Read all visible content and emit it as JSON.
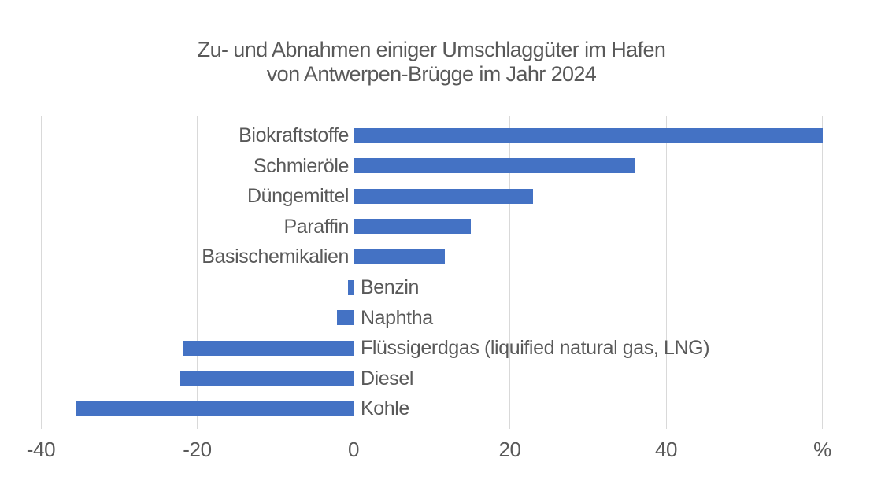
{
  "chart_data": {
    "type": "bar",
    "orientation": "horizontal",
    "title": "Zu- und Abnahmen einiger Umschlaggüter im Hafen von Antwerpen-Brügge im Jahr 2024",
    "title_lines": {
      "line1": "Zu- und Abnahmen einiger Umschlaggüter im Hafen",
      "line2": "von Antwerpen-Brügge im Jahr 2024"
    },
    "unit": "%",
    "categories": [
      "Biokraftstoffe",
      "Schmieröle",
      "Düngemittel",
      "Paraffin",
      "Basischemikalien",
      "Benzin",
      "Naphtha",
      "Flüssigerdgas (liquified natural gas, LNG)",
      "Diesel",
      "Kohle"
    ],
    "values": [
      60,
      36,
      23,
      15,
      11.7,
      -0.7,
      -2.1,
      -21.9,
      -22.3,
      -35.5
    ],
    "xlim": [
      -40,
      60
    ],
    "x_ticks": [
      {
        "value": -40,
        "label": "-40"
      },
      {
        "value": -20,
        "label": "-20"
      },
      {
        "value": 0,
        "label": "0"
      },
      {
        "value": 20,
        "label": "20"
      },
      {
        "value": 40,
        "label": "40"
      },
      {
        "value": 60,
        "label": "%"
      }
    ],
    "grid": true,
    "legend": "none",
    "colors": {
      "bar": "#4472c4",
      "text": "#595959",
      "grid": "#d9d9d9",
      "zero_line": "#bdbdbd",
      "background": "#ffffff"
    }
  }
}
